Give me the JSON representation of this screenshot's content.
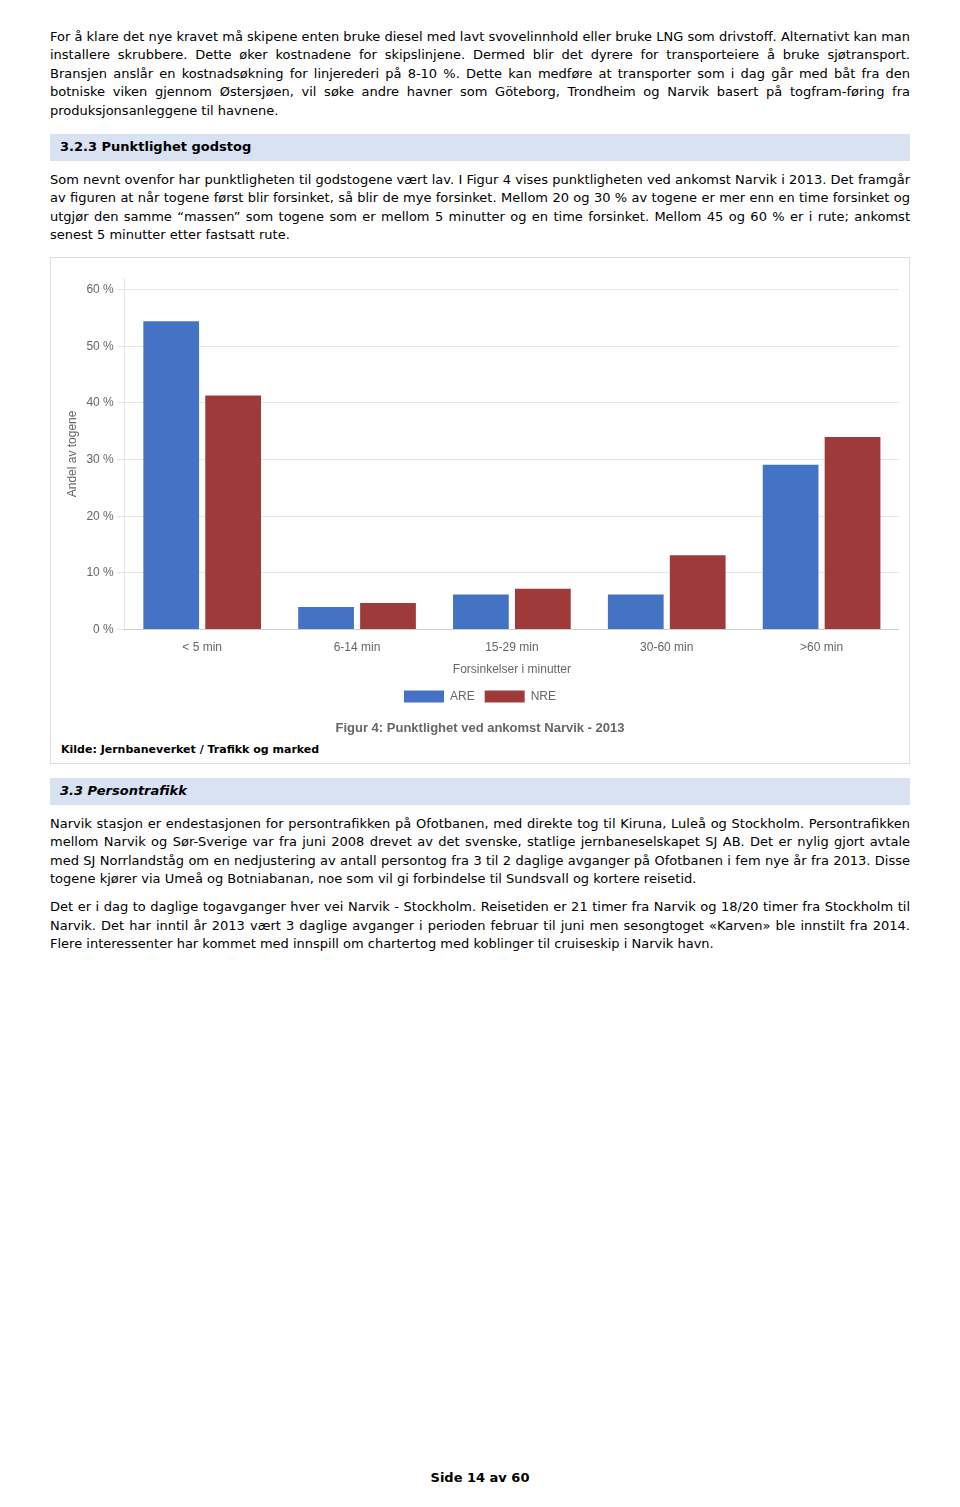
{
  "page": {
    "text_top": [
      "For å klare det nye kravet må skipene enten bruke diesel med lavt svovelinnhold eller bruke LNG som drivstoff. Alternativt kan man installere skrubbere. Dette øker kostnadene for skipslinjene. Dermed blir det dyrere for transporteiere å bruke sjøtransport. Bransjen anslår en kostnadsøkning for linjerederi på 8-10 %. Dette kan medføre at transporter som i dag går med båt fra den botniske viken gjennom Østersjøen, vil søke andre havner som Göteborg, Trondheim og Narvik basert på togfram-føring fra produksjonsanleggene til havnene."
    ],
    "section_heading": "3.2.3    Punktlighet godstog",
    "body_text": [
      "Som nevnt ovenfor har punktligheten til godstogene vært lav. I Figur 4 vises punktligheten ved ankomst Narvik i 2013. Det framgår av figuren at når togene først blir forsinket, så blir de mye forsinket. Mellom 20 og 30 % av togene er mer enn en time forsinket og utgjør den samme “massen” som togene som er mellom 5 minutter og en time forsinket. Mellom 45 og 60 % er i rute; ankomst senest 5 minutter etter fastsatt rute."
    ],
    "section2_heading": "3.3    Persontrafikk",
    "body_text2": [
      "Narvik stasjon er endestasjonen for persontrafikken på Ofotbanen, med direkte tog til Kiruna, Luleå og Stockholm. Persontrafikken mellom Narvik og Sør-Sverige var fra juni 2008 drevet av det svenske, statlige jernbaneselskapet SJ AB. Det er nylig gjort avtale med SJ Norrlandståg om en nedjustering av antall persontog fra 3 til 2 daglige avganger på Ofotbanen i fem nye år fra 2013. Disse togene kjører via Umeå og Botniabanan, noe som vil gi forbindelse til Sundsvall og kortere reisetid."
    ],
    "body_text3": [
      "Det er i dag to daglige togavganger hver vei Narvik - Stockholm. Reisetiden er 21 timer fra Narvik og 18/20 timer fra Stockholm til Narvik. Det har inntil år 2013 vært 3 daglige avganger i perioden februar til juni men sesongtoget «Karven» ble innstilt fra 2014. Flere interessenter har kommet med innspill om chartertog med koblinger til cruiseskip i Narvik havn."
    ],
    "page_number": "Side 14 av 60"
  },
  "chart_data": {
    "type": "bar",
    "title": "Figur 4: Punktlighet ved ankomst Narvik - 2013",
    "annotations": [
      "Kilde: Jernbaneverket / Trafikk og marked"
    ],
    "xlabel": "Forsinkelser i minutter",
    "ylabel": "Andel av togene",
    "categories": [
      "< 5 min",
      "6-14 min",
      "15-29 min",
      "30-60 min",
      ">60 min"
    ],
    "series": [
      {
        "name": "ARE",
        "color": "#4472C4",
        "values": [
          0.544,
          0.04,
          0.062,
          0.062,
          0.291
        ]
      },
      {
        "name": "NRE",
        "color": "#9E3A3A",
        "values": [
          0.413,
          0.047,
          0.072,
          0.131,
          0.34
        ]
      }
    ],
    "ylim": [
      0,
      0.62
    ],
    "yticks": [
      {
        "value": 0.0,
        "label": "0 %"
      },
      {
        "value": 0.1,
        "label": "10 %"
      },
      {
        "value": 0.2,
        "label": "20 %"
      },
      {
        "value": 0.3,
        "label": "30 %"
      },
      {
        "value": 0.4,
        "label": "40 %"
      },
      {
        "value": 0.5,
        "label": "50 %"
      },
      {
        "value": 0.6,
        "label": "60 %"
      }
    ],
    "grid": true,
    "legend": "bottom"
  }
}
